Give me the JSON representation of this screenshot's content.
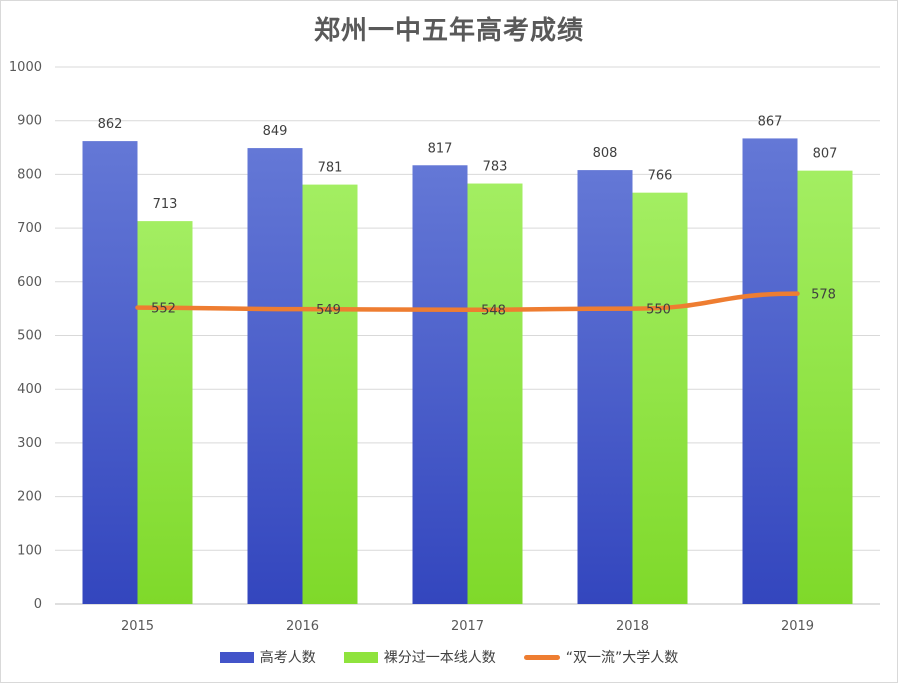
{
  "chart_data": {
    "type": "bar",
    "title": "郑州一中五年高考成绩",
    "categories": [
      "2015",
      "2016",
      "2017",
      "2018",
      "2019"
    ],
    "series": [
      {
        "name": "高考人数",
        "type": "bar",
        "color": "#4354c9",
        "values": [
          862,
          849,
          817,
          808,
          867
        ]
      },
      {
        "name": "裸分过一本线人数",
        "type": "bar",
        "color": "#8fe33d",
        "values": [
          713,
          781,
          783,
          766,
          807
        ]
      },
      {
        "name": "“双一流”大学人数",
        "type": "line",
        "color": "#ee7d31",
        "values": [
          552,
          549,
          548,
          550,
          578
        ]
      }
    ],
    "ylim": [
      0,
      1000
    ],
    "yticks": [
      0,
      100,
      200,
      300,
      400,
      500,
      600,
      700,
      800,
      900,
      1000
    ],
    "grid": true,
    "legend_position": "bottom",
    "data_labels": true
  }
}
